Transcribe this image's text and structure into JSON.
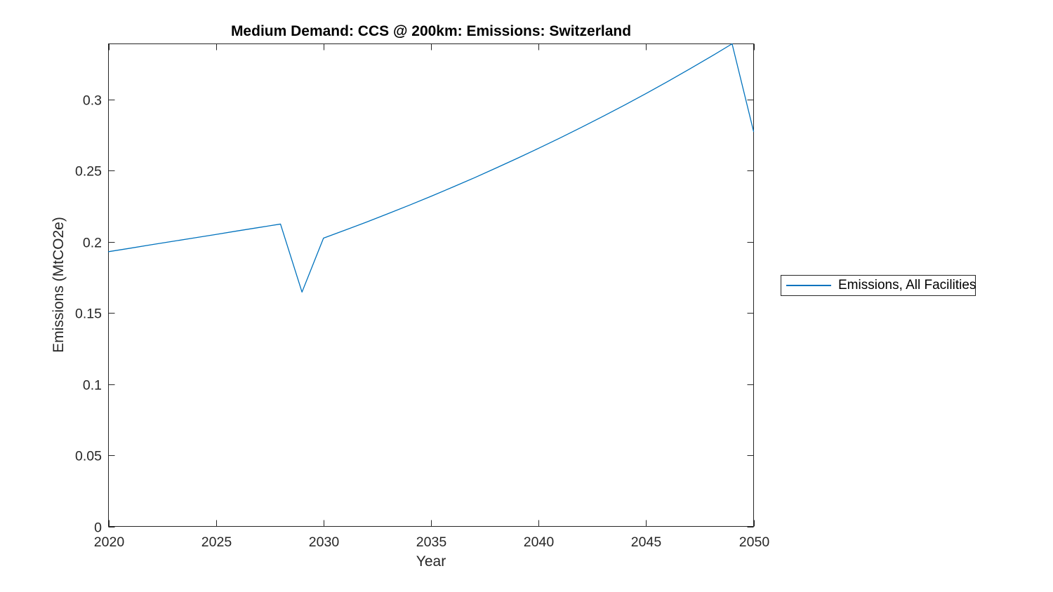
{
  "chart_data": {
    "type": "line",
    "title": "Medium Demand: CCS @ 200km: Emissions: Switzerland",
    "xlabel": "Year",
    "ylabel": "Emissions (MtCO2e)",
    "grid": false,
    "box": true,
    "legend_position": "east-outside",
    "xlim": [
      2020,
      2050
    ],
    "ylim": [
      0,
      0.339
    ],
    "xticks": [
      2020,
      2025,
      2030,
      2035,
      2040,
      2045,
      2050
    ],
    "xtick_labels": [
      "2020",
      "2025",
      "2030",
      "2035",
      "2040",
      "2045",
      "2050"
    ],
    "yticks": [
      0,
      0.05,
      0.1,
      0.15,
      0.2,
      0.25,
      0.3
    ],
    "ytick_labels": [
      "0",
      "0.05",
      "0.1",
      "0.15",
      "0.2",
      "0.25",
      "0.3"
    ],
    "colors": {
      "line": "#0072BD",
      "axis": "#262626",
      "tick_label": "#262626",
      "title": "#000000",
      "background": "#ffffff"
    },
    "x": [
      2020,
      2021,
      2022,
      2023,
      2024,
      2025,
      2026,
      2027,
      2028,
      2029,
      2030,
      2031,
      2032,
      2033,
      2034,
      2035,
      2036,
      2037,
      2038,
      2039,
      2040,
      2041,
      2042,
      2043,
      2044,
      2045,
      2046,
      2047,
      2048,
      2049,
      2050
    ],
    "series": [
      {
        "name": "Emissions, All Facilities",
        "color": "#0072BD",
        "values": [
          0.193,
          0.1954,
          0.1979,
          0.2003,
          0.2027,
          0.2051,
          0.2076,
          0.21,
          0.2124,
          0.1646,
          0.2025,
          0.2081,
          0.2138,
          0.2197,
          0.2257,
          0.2319,
          0.2383,
          0.2448,
          0.2516,
          0.2585,
          0.2656,
          0.2729,
          0.2804,
          0.2881,
          0.296,
          0.3041,
          0.3125,
          0.3211,
          0.3299,
          0.339,
          0.2774
        ]
      }
    ]
  }
}
